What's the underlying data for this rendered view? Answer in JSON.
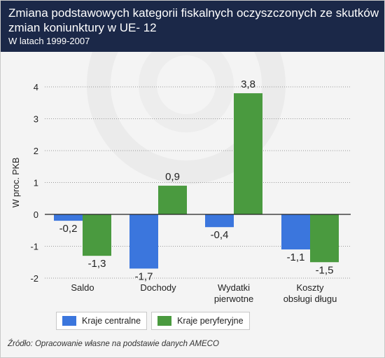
{
  "header": {
    "title": "Zmiana podstawowych kategorii fiskalnych oczyszczonych ze skutków zmian koniunktury w UE- 12",
    "subtitle": "W latach 1999-2007"
  },
  "source": "Źródło: Opracowanie własne na podstawie danych AMECO",
  "colors": {
    "header_bg": "#1b2848",
    "series_1": "#3b76dd",
    "series_2": "#4a9a3f",
    "background": "#f4f4f4"
  },
  "chart_data": {
    "type": "bar",
    "ylabel": "W proc. PKB",
    "xlabel": "",
    "ylim": [
      -2,
      4
    ],
    "yticks": [
      -2,
      -1,
      0,
      1,
      2,
      3,
      4
    ],
    "grid": "horizontal dotted",
    "legend_position": "bottom-left",
    "categories": [
      "Saldo",
      "Dochody",
      "Wydatki pierwotne",
      "Koszty obsługi długu"
    ],
    "category_lines": [
      [
        "Saldo"
      ],
      [
        "Dochody"
      ],
      [
        "Wydatki",
        "pierwotne"
      ],
      [
        "Koszty",
        "obsługi długu"
      ]
    ],
    "series": [
      {
        "name": "Kraje centralne",
        "values": [
          -0.2,
          -1.7,
          -0.4,
          -1.1
        ],
        "labels": [
          "-0,2",
          "-1,7",
          "-0,4",
          "-1,1"
        ],
        "color": "#3b76dd"
      },
      {
        "name": "Kraje peryferyjne",
        "values": [
          -1.3,
          0.9,
          3.8,
          -1.5
        ],
        "labels": [
          "-1,3",
          "0,9",
          "3,8",
          "-1,5"
        ],
        "color": "#4a9a3f"
      }
    ]
  }
}
